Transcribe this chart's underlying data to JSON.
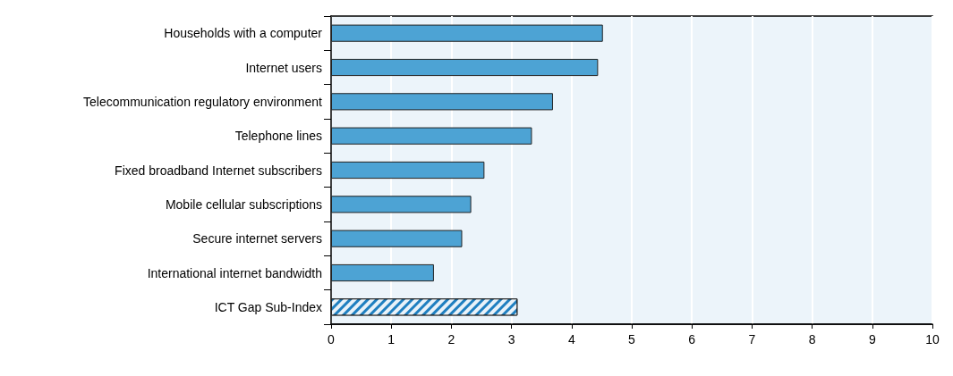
{
  "chart_data": {
    "type": "bar",
    "orientation": "horizontal",
    "categories": [
      "Households with a computer",
      "Internet users",
      "Telecommunication regulatory environment",
      "Telephone lines",
      "Fixed broadband Internet subscribers",
      "Mobile cellular subscriptions",
      "Secure internet servers",
      "International internet bandwidth",
      "ICT Gap Sub-Index"
    ],
    "values": [
      4.52,
      4.44,
      3.69,
      3.34,
      2.55,
      2.33,
      2.18,
      1.71,
      3.1
    ],
    "colors": [
      "#4da3d4",
      "#4da3d4",
      "#4da3d4",
      "#4da3d4",
      "#4da3d4",
      "#4da3d4",
      "#4da3d4",
      "#4da3d4",
      "#1f7fc0"
    ],
    "xlim": [
      0,
      10
    ],
    "xticks": [
      0,
      1,
      2,
      3,
      4,
      5,
      6,
      7,
      8,
      9,
      10
    ],
    "grid": "x"
  }
}
